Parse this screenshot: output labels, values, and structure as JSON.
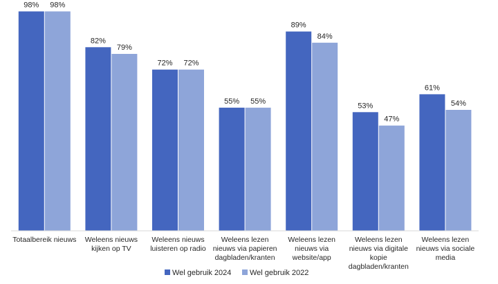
{
  "chart_data": {
    "type": "bar",
    "title": "",
    "xlabel": "",
    "ylabel": "",
    "ylim": [
      0,
      100
    ],
    "grid": false,
    "legend_position": "bottom",
    "categories": [
      [
        "Totaalbereik nieuws"
      ],
      [
        "Weleens nieuws",
        "kijken op TV"
      ],
      [
        "Weleens nieuws",
        "luisteren op radio"
      ],
      [
        "Weleens lezen",
        "nieuws via papieren",
        "dagbladen/kranten"
      ],
      [
        "Weleens lezen",
        "nieuws via",
        "website/app"
      ],
      [
        "Weleens lezen",
        "nieuws via digitale",
        "kopie",
        "dagbladen/kranten"
      ],
      [
        "Weleens lezen",
        "nieuws via sociale",
        "media"
      ]
    ],
    "series": [
      {
        "name": "Wel gebruik 2024",
        "color": "#4466bf",
        "values": [
          98,
          82,
          72,
          55,
          89,
          53,
          61
        ],
        "labels": [
          "98%",
          "82%",
          "72%",
          "55%",
          "89%",
          "53%",
          "61%"
        ]
      },
      {
        "name": "Wel gebruik 2022",
        "color": "#8ea5d9",
        "values": [
          98,
          79,
          72,
          55,
          84,
          47,
          54
        ],
        "labels": [
          "98%",
          "79%",
          "72%",
          "55%",
          "84%",
          "47%",
          "54%"
        ]
      }
    ]
  }
}
